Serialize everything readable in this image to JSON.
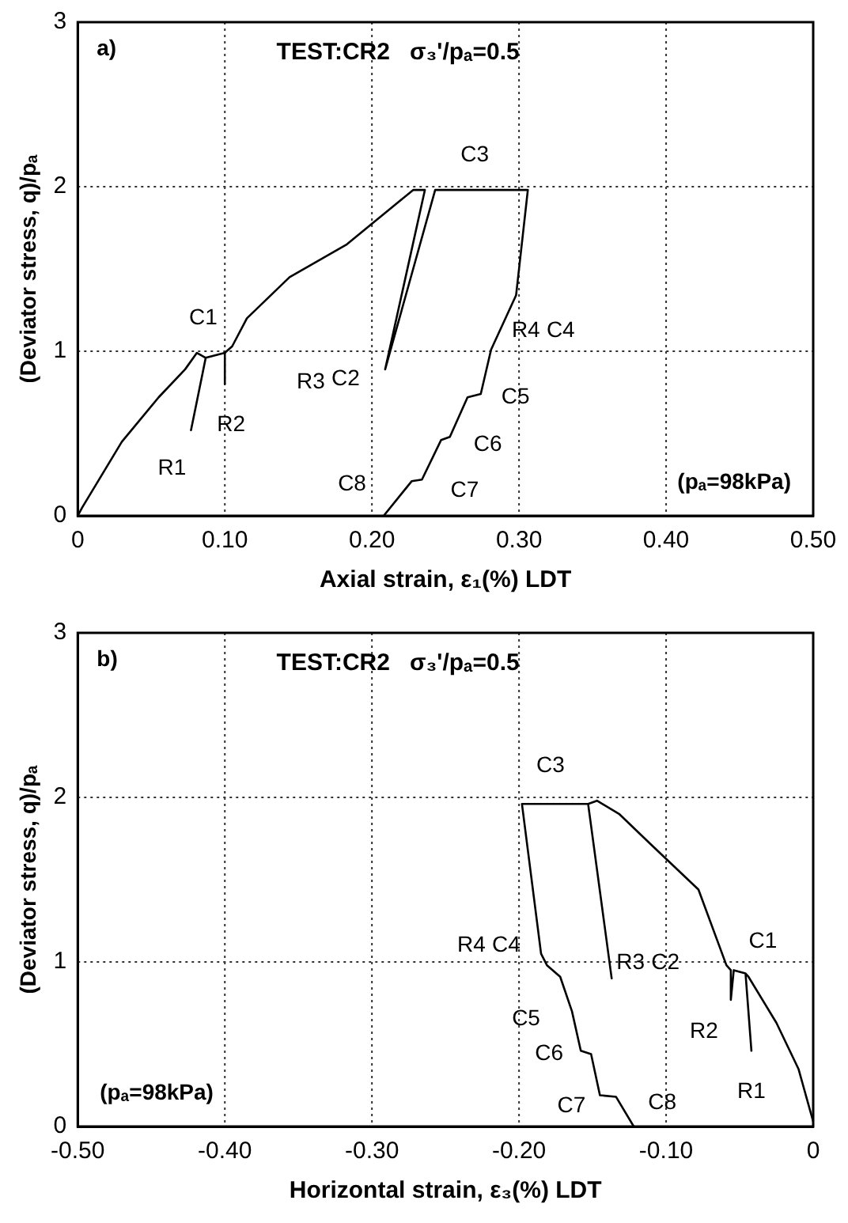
{
  "chart_data": [
    {
      "type": "line",
      "title": "TEST:CR2   σ₃'/pₐ=0.5",
      "xlabel": "Axial strain, ε₁(%) LDT",
      "ylabel": "(Deviator stress, q)/pₐ",
      "xlim": [
        0,
        0.5
      ],
      "ylim": [
        0,
        3
      ],
      "xticks": [
        0,
        {
          "value": 0.1,
          "label": "0.10"
        },
        {
          "value": 0.2,
          "label": "0.20"
        },
        {
          "value": 0.3,
          "label": "0.30"
        },
        {
          "value": 0.4,
          "label": "0.40"
        },
        {
          "value": 0.5,
          "label": "0.50"
        }
      ],
      "yticks": [
        0,
        1,
        2,
        3
      ],
      "grid": true,
      "legend": false,
      "marker": "none",
      "line_style": "solid",
      "series": [
        {
          "color": "#000000",
          "x": [
            0,
            0.003,
            0.03,
            0.055,
            0.073,
            0.081,
            0.087,
            0.077,
            0.087,
            0.1,
            0.105,
            0.115,
            0.144,
            0.183,
            0.228,
            0.236,
            0.209,
            0.243,
            0.306,
            0.298,
            0.281,
            0.274,
            0.265,
            0.253,
            0.247,
            0.234,
            0.227,
            0.208
          ],
          "values": [
            0,
            0.05,
            0.45,
            0.72,
            0.89,
            0.99,
            0.96,
            0.52,
            0.96,
            0.99,
            1.03,
            1.2,
            1.45,
            1.65,
            1.98,
            1.98,
            0.89,
            1.98,
            1.98,
            1.34,
            1.01,
            0.74,
            0.72,
            0.48,
            0.46,
            0.22,
            0.21,
            0
          ]
        },
        {
          "color": "#000000",
          "x": [
            0.1,
            0.1
          ],
          "values": [
            0.99,
            0.8
          ]
        }
      ],
      "annotations": [
        "a)",
        "(pₐ=98kPa)",
        {
          "text": "C1",
          "x": 0.081,
          "y": 0.99
        },
        {
          "text": "R1",
          "x": 0.077,
          "y": 0.52
        },
        {
          "text": "R2",
          "x": 0.1,
          "y": 0.8
        },
        {
          "text": "R3",
          "x": 0.209,
          "y": 0.89
        },
        {
          "text": "C2",
          "x": 0.209,
          "y": 0.89
        },
        {
          "text": "C3",
          "x": 0.243,
          "y": 1.98
        },
        {
          "text": "R4",
          "x": 0.281,
          "y": 1.01
        },
        {
          "text": "C4",
          "x": 0.281,
          "y": 1.01
        },
        {
          "text": "C5",
          "x": 0.274,
          "y": 0.74
        },
        {
          "text": "C6",
          "x": 0.253,
          "y": 0.48
        },
        {
          "text": "C7",
          "x": 0.234,
          "y": 0.22
        },
        {
          "text": "C8",
          "x": 0.208,
          "y": 0
        }
      ]
    },
    {
      "type": "line",
      "title": "TEST:CR2   σ₃'/pₐ=0.5",
      "xlabel": "Horizontal strain, ε₃(%) LDT",
      "ylabel": "(Deviator stress, q)/pₐ",
      "xlim": [
        -0.5,
        0
      ],
      "ylim": [
        0,
        3
      ],
      "xticks": [
        {
          "value": -0.5,
          "label": "-0.50"
        },
        {
          "value": -0.4,
          "label": "-0.40"
        },
        {
          "value": -0.3,
          "label": "-0.30"
        },
        {
          "value": -0.2,
          "label": "-0.20"
        },
        {
          "value": -0.1,
          "label": "-0.10"
        },
        0
      ],
      "yticks": [
        0,
        1,
        2,
        3
      ],
      "grid": true,
      "legend": false,
      "marker": "none",
      "line_style": "solid",
      "series": [
        {
          "color": "#000000",
          "x": [
            0,
            -0.01,
            -0.025,
            -0.044,
            -0.046,
            -0.042,
            -0.046,
            -0.054,
            -0.056,
            -0.056,
            -0.059,
            -0.078,
            -0.111,
            -0.132,
            -0.147,
            -0.153,
            -0.137,
            -0.153,
            -0.16,
            -0.197,
            -0.198,
            -0.185,
            -0.181,
            -0.172,
            -0.164,
            -0.158,
            -0.151,
            -0.145,
            -0.134,
            -0.122
          ],
          "values": [
            0.03,
            0.35,
            0.63,
            0.91,
            0.93,
            0.46,
            0.93,
            0.95,
            0.77,
            0.95,
            0.98,
            1.44,
            1.72,
            1.9,
            1.98,
            1.96,
            0.9,
            1.96,
            1.96,
            1.96,
            1.96,
            1.05,
            0.98,
            0.91,
            0.7,
            0.46,
            0.44,
            0.19,
            0.18,
            0
          ]
        }
      ],
      "annotations": [
        "b)",
        "(pₐ=98kPa)",
        {
          "text": "C1",
          "x": -0.046,
          "y": 0.93
        },
        {
          "text": "R1",
          "x": -0.042,
          "y": 0.46
        },
        {
          "text": "R2",
          "x": -0.056,
          "y": 0.77
        },
        {
          "text": "R3",
          "x": -0.137,
          "y": 0.9
        },
        {
          "text": "C2",
          "x": -0.137,
          "y": 0.9
        },
        {
          "text": "C3",
          "x": -0.198,
          "y": 1.96
        },
        {
          "text": "R4",
          "x": -0.185,
          "y": 1.05
        },
        {
          "text": "C4",
          "x": -0.185,
          "y": 1.05
        },
        {
          "text": "C5",
          "x": -0.164,
          "y": 0.7
        },
        {
          "text": "C6",
          "x": -0.158,
          "y": 0.46
        },
        {
          "text": "C7",
          "x": -0.145,
          "y": 0.19
        },
        {
          "text": "C8",
          "x": -0.122,
          "y": 0
        }
      ]
    }
  ]
}
